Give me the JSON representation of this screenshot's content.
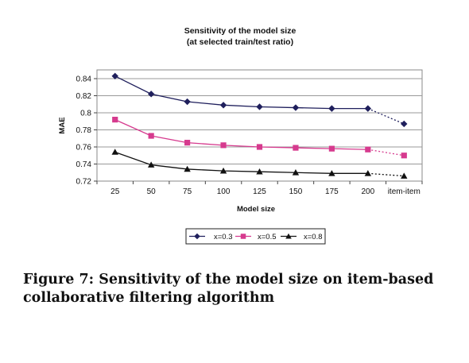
{
  "chart_data": {
    "type": "line",
    "title": "Sensitivity of the model size",
    "subtitle": "(at selected train/test ratio)",
    "xlabel": "Model size",
    "ylabel": "MAE",
    "categories": [
      "25",
      "50",
      "75",
      "100",
      "125",
      "150",
      "175",
      "200",
      "item-item"
    ],
    "ylim": [
      0.72,
      0.85
    ],
    "yticks": [
      "0.72",
      "0.74",
      "0.76",
      "0.78",
      "0.8",
      "0.82",
      "0.84"
    ],
    "grid": "horizontal",
    "legend_position": "bottom",
    "series": [
      {
        "name": "x=0.3",
        "marker": "diamond",
        "color": "#1f1f5c",
        "values": [
          0.843,
          0.822,
          0.813,
          0.809,
          0.807,
          0.806,
          0.805,
          0.805,
          0.787
        ]
      },
      {
        "name": "x=0.5",
        "marker": "square",
        "color": "#d63a8e",
        "values": [
          0.792,
          0.773,
          0.765,
          0.762,
          0.76,
          0.759,
          0.758,
          0.757,
          0.75
        ]
      },
      {
        "name": "x=0.8",
        "marker": "triangle",
        "color": "#111111",
        "values": [
          0.754,
          0.739,
          0.734,
          0.732,
          0.731,
          0.73,
          0.729,
          0.729,
          0.726
        ]
      }
    ],
    "note": "last segment (200 to item-item) is dotted"
  },
  "caption": "Figure 7: Sensitivity of the model size on item-based collaborative filtering algorithm"
}
